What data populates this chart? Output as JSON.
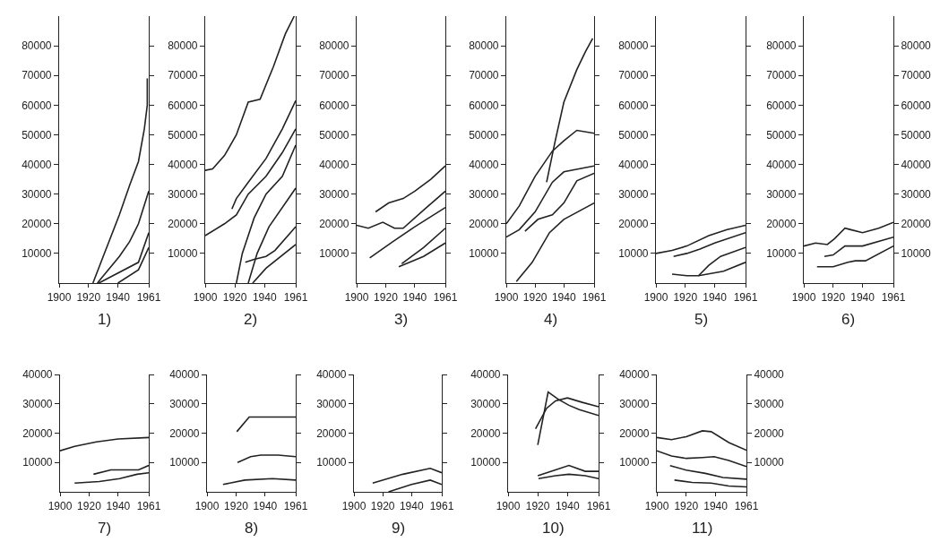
{
  "chart_data": [
    {
      "type": "line",
      "title": "1)",
      "xlim": [
        1900,
        1961
      ],
      "xticks": [
        1900,
        1920,
        1940,
        1961
      ],
      "ylim": [
        0,
        90000
      ],
      "yticks": [
        10000,
        20000,
        30000,
        40000,
        50000,
        60000,
        70000,
        80000
      ],
      "series": [
        {
          "color": "#222222",
          "x": [
            1923,
            1930,
            1941,
            1948,
            1954,
            1958,
            1960,
            1960
          ],
          "values": [
            0,
            9000,
            23000,
            33000,
            41000,
            52000,
            60000,
            69000
          ]
        },
        {
          "color": "#222222",
          "x": [
            1926,
            1941,
            1948,
            1954,
            1961
          ],
          "values": [
            0,
            9000,
            14000,
            20000,
            31000
          ]
        },
        {
          "color": "#222222",
          "x": [
            1927,
            1954,
            1961
          ],
          "values": [
            0,
            7000,
            17000
          ]
        },
        {
          "color": "#222222",
          "x": [
            1940,
            1954,
            1961
          ],
          "values": [
            0,
            4500,
            12000
          ]
        }
      ]
    },
    {
      "type": "line",
      "title": "2)",
      "xlim": [
        1900,
        1961
      ],
      "xticks": [
        1900,
        1920,
        1940,
        1961
      ],
      "ylim": [
        0,
        90000
      ],
      "yticks": [
        10000,
        20000,
        30000,
        40000,
        50000,
        60000,
        70000,
        80000
      ],
      "series": [
        {
          "color": "#222222",
          "x": [
            1900,
            1905,
            1913,
            1921,
            1929,
            1937,
            1946,
            1954,
            1960
          ],
          "values": [
            38000,
            38500,
            43000,
            50000,
            61000,
            62000,
            73000,
            84000,
            90000
          ]
        },
        {
          "color": "#222222",
          "x": [
            1918,
            1921,
            1929,
            1941,
            1952,
            1961
          ],
          "values": [
            25000,
            28500,
            34000,
            42000,
            52000,
            61500
          ]
        },
        {
          "color": "#222222",
          "x": [
            1900,
            1913,
            1921,
            1929,
            1941,
            1952,
            1961
          ],
          "values": [
            16000,
            20000,
            23000,
            30000,
            36000,
            44000,
            52000
          ]
        },
        {
          "color": "#222222",
          "x": [
            1921,
            1925,
            1933,
            1941,
            1952,
            1961
          ],
          "values": [
            0,
            10000,
            22000,
            30000,
            36000,
            46500
          ]
        },
        {
          "color": "#222222",
          "x": [
            1929,
            1935,
            1943,
            1961
          ],
          "values": [
            0,
            10000,
            19000,
            32000
          ]
        },
        {
          "color": "#222222",
          "x": [
            1927,
            1933,
            1941,
            1947,
            1961
          ],
          "values": [
            7000,
            8000,
            9000,
            11000,
            19000
          ]
        },
        {
          "color": "#222222",
          "x": [
            1932,
            1941,
            1961
          ],
          "values": [
            0,
            5000,
            13000
          ]
        }
      ]
    },
    {
      "type": "line",
      "title": "3)",
      "xlim": [
        1900,
        1961
      ],
      "xticks": [
        1900,
        1920,
        1940,
        1961
      ],
      "ylim": [
        0,
        90000
      ],
      "yticks": [
        10000,
        20000,
        30000,
        40000,
        50000,
        60000,
        70000,
        80000
      ],
      "series": [
        {
          "color": "#222222",
          "x": [
            1900,
            1908,
            1918,
            1926,
            1932,
            1947,
            1961
          ],
          "values": [
            19500,
            18500,
            20500,
            18500,
            18500,
            25000,
            31000
          ]
        },
        {
          "color": "#222222",
          "x": [
            1913,
            1922,
            1932,
            1940,
            1951,
            1961
          ],
          "values": [
            24000,
            27000,
            28500,
            31000,
            35000,
            39500
          ]
        },
        {
          "color": "#222222",
          "x": [
            1909,
            1925,
            1940,
            1961
          ],
          "values": [
            8500,
            14000,
            19000,
            25500
          ]
        },
        {
          "color": "#222222",
          "x": [
            1931,
            1946,
            1961
          ],
          "values": [
            6500,
            12000,
            18500
          ]
        },
        {
          "color": "#222222",
          "x": [
            1929,
            1946,
            1961
          ],
          "values": [
            5500,
            9000,
            13500
          ]
        }
      ]
    },
    {
      "type": "line",
      "title": "4)",
      "xlim": [
        1900,
        1961
      ],
      "xticks": [
        1900,
        1920,
        1940,
        1961
      ],
      "ylim": [
        0,
        90000
      ],
      "yticks": [
        10000,
        20000,
        30000,
        40000,
        50000,
        60000,
        70000,
        80000
      ],
      "series": [
        {
          "color": "#222222",
          "x": [
            1928,
            1934,
            1940,
            1949,
            1955,
            1960
          ],
          "values": [
            34000,
            48000,
            61000,
            72000,
            78000,
            82500
          ]
        },
        {
          "color": "#222222",
          "x": [
            1900,
            1909,
            1920,
            1932,
            1940,
            1949,
            1961
          ],
          "values": [
            20000,
            26000,
            36000,
            44500,
            48000,
            51500,
            50500
          ]
        },
        {
          "color": "#222222",
          "x": [
            1900,
            1909,
            1920,
            1932,
            1940,
            1961
          ],
          "values": [
            15500,
            18000,
            24000,
            34000,
            37500,
            39500
          ]
        },
        {
          "color": "#222222",
          "x": [
            1913,
            1922,
            1932,
            1940,
            1949,
            1961
          ],
          "values": [
            17500,
            21500,
            23000,
            27000,
            34500,
            37000
          ]
        },
        {
          "color": "#222222",
          "x": [
            1907,
            1918,
            1930,
            1940,
            1961
          ],
          "values": [
            500,
            7000,
            17000,
            21500,
            27000
          ]
        }
      ]
    },
    {
      "type": "line",
      "title": "5)",
      "xlim": [
        1900,
        1961
      ],
      "xticks": [
        1900,
        1920,
        1940,
        1961
      ],
      "ylim": [
        0,
        90000
      ],
      "yticks": [
        10000,
        20000,
        30000,
        40000,
        50000,
        60000,
        70000,
        80000
      ],
      "series": [
        {
          "color": "#222222",
          "x": [
            1900,
            1911,
            1921,
            1936,
            1948,
            1961
          ],
          "values": [
            10000,
            11000,
            12500,
            16000,
            18000,
            19500
          ]
        },
        {
          "color": "#222222",
          "x": [
            1912,
            1921,
            1930,
            1940,
            1961
          ],
          "values": [
            9000,
            10000,
            11500,
            13500,
            17000
          ]
        },
        {
          "color": "#222222",
          "x": [
            1911,
            1921,
            1929,
            1936,
            1944,
            1961
          ],
          "values": [
            3000,
            2500,
            2500,
            6000,
            9000,
            12000
          ]
        },
        {
          "color": "#222222",
          "x": [
            1929,
            1946,
            1961
          ],
          "values": [
            2500,
            4000,
            7000
          ]
        }
      ]
    },
    {
      "type": "line",
      "title": "6)",
      "xlim": [
        1900,
        1961
      ],
      "xticks": [
        1900,
        1920,
        1940,
        1961
      ],
      "ylim": [
        0,
        90000
      ],
      "yticks": [
        10000,
        20000,
        30000,
        40000,
        50000,
        60000,
        70000,
        80000
      ],
      "y2lim": [
        0,
        90000
      ],
      "y2ticks": [
        10000,
        20000,
        30000,
        40000,
        50000,
        60000,
        70000,
        80000
      ],
      "series": [
        {
          "color": "#222222",
          "x": [
            1900,
            1908,
            1916,
            1921,
            1928,
            1932,
            1940,
            1951,
            1961
          ],
          "values": [
            12500,
            13500,
            13000,
            15000,
            18500,
            18000,
            17000,
            18500,
            20500
          ]
        },
        {
          "color": "#222222",
          "x": [
            1914,
            1920,
            1928,
            1940,
            1961
          ],
          "values": [
            9000,
            9500,
            12500,
            12500,
            15500
          ]
        },
        {
          "color": "#222222",
          "x": [
            1909,
            1920,
            1930,
            1935,
            1942,
            1961
          ],
          "values": [
            5500,
            5500,
            7000,
            7500,
            7500,
            12500
          ]
        }
      ]
    },
    {
      "type": "line",
      "title": "7)",
      "xlim": [
        1900,
        1961
      ],
      "xticks": [
        1900,
        1920,
        1940,
        1961
      ],
      "ylim": [
        0,
        40000
      ],
      "yticks": [
        10000,
        20000,
        30000,
        40000
      ],
      "series": [
        {
          "color": "#222222",
          "x": [
            1900,
            1910,
            1925,
            1940,
            1961
          ],
          "values": [
            14000,
            15500,
            17000,
            18000,
            18500
          ]
        },
        {
          "color": "#222222",
          "x": [
            1923,
            1935,
            1945,
            1954,
            1961
          ],
          "values": [
            6000,
            7500,
            7500,
            7500,
            9000
          ]
        },
        {
          "color": "#222222",
          "x": [
            1910,
            1927,
            1941,
            1953,
            1961
          ],
          "values": [
            3000,
            3500,
            4500,
            6000,
            6500
          ]
        }
      ]
    },
    {
      "type": "line",
      "title": "8)",
      "xlim": [
        1900,
        1961
      ],
      "xticks": [
        1900,
        1920,
        1940,
        1961
      ],
      "ylim": [
        0,
        40000
      ],
      "yticks": [
        10000,
        20000,
        30000,
        40000
      ],
      "series": [
        {
          "color": "#222222",
          "x": [
            1920.5,
            1929,
            1961
          ],
          "values": [
            20500,
            25500,
            25500
          ]
        },
        {
          "color": "#222222",
          "x": [
            1921,
            1930,
            1937,
            1949,
            1961
          ],
          "values": [
            10000,
            12000,
            12500,
            12500,
            12000
          ]
        },
        {
          "color": "#222222",
          "x": [
            1911,
            1926,
            1945,
            1961
          ],
          "values": [
            2500,
            4000,
            4500,
            4000
          ]
        }
      ]
    },
    {
      "type": "line",
      "title": "9)",
      "xlim": [
        1900,
        1961
      ],
      "xticks": [
        1900,
        1920,
        1940,
        1961
      ],
      "ylim": [
        0,
        40000
      ],
      "yticks": [
        10000,
        20000,
        30000,
        40000
      ],
      "series": [
        {
          "color": "#222222",
          "x": [
            1913,
            1934,
            1953,
            1961
          ],
          "values": [
            3000,
            6000,
            8000,
            6500
          ]
        },
        {
          "color": "#222222",
          "x": [
            1924,
            1940,
            1953,
            1961
          ],
          "values": [
            0,
            2500,
            4000,
            2500
          ]
        }
      ]
    },
    {
      "type": "line",
      "title": "10)",
      "xlim": [
        1900,
        1961
      ],
      "xticks": [
        1900,
        1920,
        1940,
        1961
      ],
      "ylim": [
        0,
        40000
      ],
      "yticks": [
        10000,
        20000,
        30000,
        40000
      ],
      "series": [
        {
          "color": "#222222",
          "x": [
            1920,
            1927,
            1934,
            1941,
            1948,
            1961
          ],
          "values": [
            16000,
            34000,
            31500,
            29500,
            28000,
            26000
          ]
        },
        {
          "color": "#222222",
          "x": [
            1918.5,
            1926,
            1932,
            1940,
            1950,
            1961
          ],
          "values": [
            21500,
            28500,
            31000,
            32000,
            30500,
            29000
          ]
        },
        {
          "color": "#222222",
          "x": [
            1920,
            1932,
            1941,
            1952,
            1961
          ],
          "values": [
            5500,
            7500,
            9000,
            7000,
            7000
          ]
        },
        {
          "color": "#222222",
          "x": [
            1920.5,
            1932,
            1941,
            1952,
            1961
          ],
          "values": [
            4500,
            5500,
            6000,
            5500,
            4500
          ]
        }
      ]
    },
    {
      "type": "line",
      "title": "11)",
      "xlim": [
        1900,
        1961
      ],
      "xticks": [
        1900,
        1920,
        1940,
        1961
      ],
      "ylim": [
        0,
        40000
      ],
      "yticks": [
        10000,
        20000,
        30000,
        40000
      ],
      "y2lim": [
        0,
        40000
      ],
      "y2ticks": [
        10000,
        20000,
        30000,
        40000
      ],
      "series": [
        {
          "color": "#222222",
          "x": [
            1900,
            1910,
            1920,
            1931,
            1937,
            1949,
            1961
          ],
          "values": [
            18500,
            17800,
            18800,
            20800,
            20500,
            16800,
            14200
          ]
        },
        {
          "color": "#222222",
          "x": [
            1900,
            1910,
            1920,
            1931,
            1939,
            1949,
            1961
          ],
          "values": [
            14000,
            12200,
            11400,
            11700,
            12000,
            10700,
            8600
          ]
        },
        {
          "color": "#222222",
          "x": [
            1909,
            1920,
            1933,
            1945,
            1961
          ],
          "values": [
            8900,
            7400,
            6300,
            4900,
            4300
          ]
        },
        {
          "color": "#222222",
          "x": [
            1912,
            1924,
            1937,
            1949,
            1961
          ],
          "values": [
            4000,
            3200,
            3000,
            2000,
            1700
          ]
        }
      ]
    }
  ]
}
